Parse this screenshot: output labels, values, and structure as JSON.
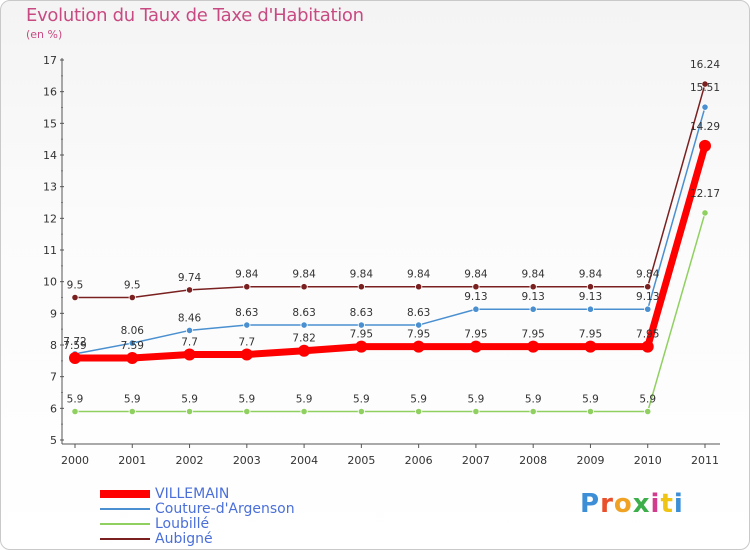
{
  "header": {
    "title": "Evolution du Taux de Taxe d'Habitation",
    "subtitle": "(en %)"
  },
  "logo": {
    "text": "Proxiti",
    "letter_colors": [
      "#3c8ed6",
      "#e84f2a",
      "#f0a224",
      "#3cae4a",
      "#d23c8c",
      "#f0c414",
      "#3c8ed6"
    ]
  },
  "chart_data": {
    "type": "line",
    "title": "Evolution du Taux de Taxe d'Habitation",
    "ylabel": "(en %)",
    "xlabel": "",
    "ylim": [
      5,
      17
    ],
    "yticks": [
      5,
      6,
      7,
      8,
      9,
      10,
      11,
      12,
      13,
      14,
      15,
      16,
      17
    ],
    "grid": false,
    "legend_position": "bottom-left",
    "x": [
      "2000",
      "2001",
      "2002",
      "2003",
      "2004",
      "2005",
      "2006",
      "2007",
      "2008",
      "2009",
      "2010",
      "2011"
    ],
    "series": [
      {
        "name": "Aubigné",
        "color": "#7a2020",
        "values": [
          9.5,
          9.5,
          9.74,
          9.84,
          9.84,
          9.84,
          9.84,
          9.84,
          9.84,
          9.84,
          9.84,
          16.24
        ],
        "labels": [
          "9.5",
          "9.5",
          "9.74",
          "9.84",
          "9.84",
          "9.84",
          "9.84",
          "9.84",
          "9.84",
          "9.84",
          "9.84",
          "16.24"
        ]
      },
      {
        "name": "Loubillé",
        "color": "#90d060",
        "values": [
          5.9,
          5.9,
          5.9,
          5.9,
          5.9,
          5.9,
          5.9,
          5.9,
          5.9,
          5.9,
          5.9,
          12.17
        ],
        "labels": [
          "5.9",
          "5.9",
          "5.9",
          "5.9",
          "5.9",
          "5.9",
          "5.9",
          "5.9",
          "5.9",
          "5.9",
          "5.9",
          "12.17"
        ]
      },
      {
        "name": "Couture-d'Argenson",
        "color": "#4a90d0",
        "values": [
          7.72,
          8.06,
          8.46,
          8.63,
          8.63,
          8.63,
          8.63,
          9.13,
          9.13,
          9.13,
          9.13,
          15.51
        ],
        "labels": [
          "7.72",
          "8.06",
          "8.46",
          "8.63",
          "8.63",
          "8.63",
          "8.63",
          "9.13",
          "9.13",
          "9.13",
          "9.13",
          "15.51"
        ]
      },
      {
        "name": "VILLEMAIN",
        "color": "#ff0000",
        "values": [
          7.59,
          7.59,
          7.7,
          7.7,
          7.82,
          7.95,
          7.95,
          7.95,
          7.95,
          7.95,
          7.95,
          14.29
        ],
        "labels": [
          "7.59",
          "7.59",
          "7.7",
          "7.7",
          "7.82",
          "7.95",
          "7.95",
          "7.95",
          "7.95",
          "7.95",
          "7.95",
          "14.29"
        ]
      }
    ],
    "legend": [
      {
        "name": "VILLEMAIN",
        "color": "#ff0000"
      },
      {
        "name": "Couture-d'Argenson",
        "color": "#4a90d0"
      },
      {
        "name": "Loubillé",
        "color": "#90d060"
      },
      {
        "name": "Aubigné",
        "color": "#7a2020"
      }
    ]
  }
}
